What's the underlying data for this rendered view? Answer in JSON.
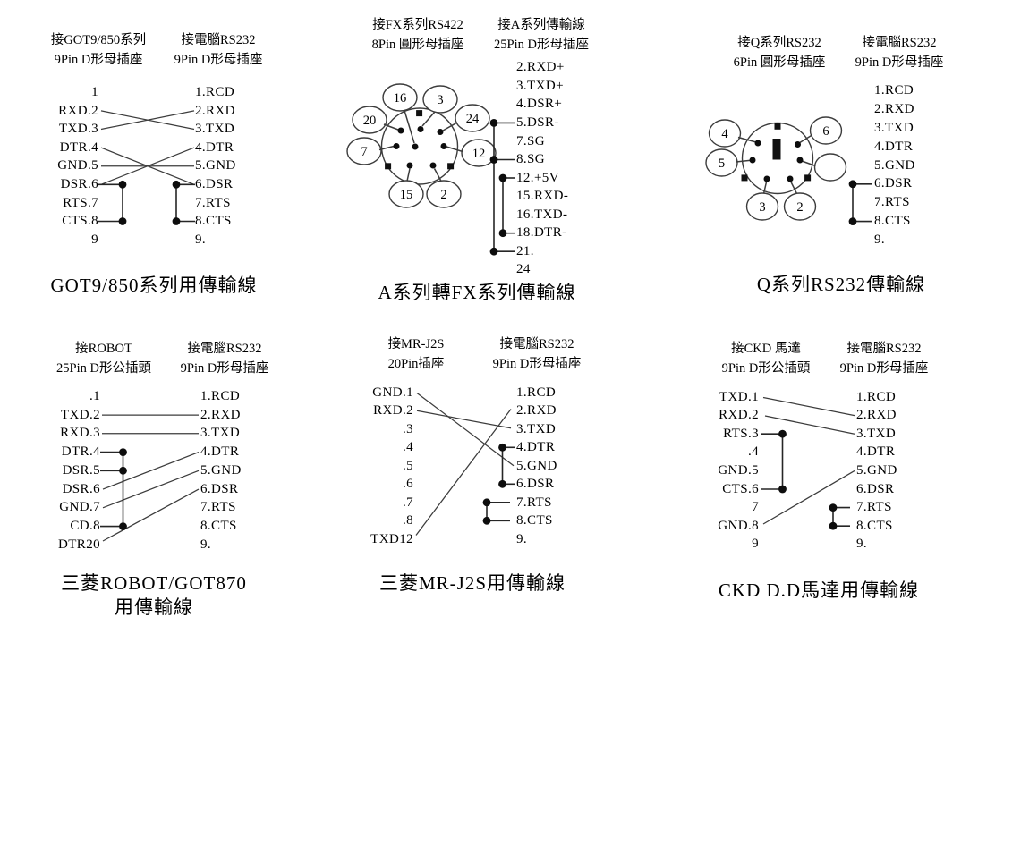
{
  "colors": {
    "ink": "#1a1a1a",
    "line": "#3c3c3c",
    "background": "#ffffff"
  },
  "diagrams": [
    {
      "id": "got9-850-series",
      "left_header": [
        "接GOT9/850系列",
        "9Pin D形母插座"
      ],
      "right_header": [
        "接電腦RS232",
        "9Pin D形母插座"
      ],
      "left_pins": [
        "1",
        "RXD.2",
        "TXD.3",
        "DTR.4",
        "GND.5",
        "DSR.6",
        "RTS.7",
        "CTS.8",
        "9"
      ],
      "right_pins": [
        "1.RCD",
        "2.RXD",
        "3.TXD",
        "4.DTR",
        "5.GND",
        "6.DSR",
        "7.RTS",
        "8.CTS",
        "9."
      ],
      "caption": [
        "GOT9/850系列用傳輸線"
      ]
    },
    {
      "id": "a-series-to-fx-series",
      "left_header": [
        "接FX系列RS422",
        "8Pin 圓形母插座"
      ],
      "right_header": [
        "接A系列傳輸線",
        "25Pin D形母插座"
      ],
      "bubble_labels": [
        "16",
        "3",
        "20",
        "24",
        "7",
        "12",
        "15",
        "2"
      ],
      "right_pins": [
        "2.RXD+",
        "3.TXD+",
        "4.DSR+",
        "5.DSR-",
        "7.SG",
        "8.SG",
        "12.+5V",
        "15.RXD-",
        "16.TXD-",
        "18.DTR-",
        "21.",
        "24"
      ],
      "caption": [
        "A系列轉FX系列傳輸線"
      ]
    },
    {
      "id": "q-series-rs232",
      "left_header": [
        "接Q系列RS232",
        "6Pin 圓形母插座"
      ],
      "right_header": [
        "接電腦RS232",
        "9Pin D形母插座"
      ],
      "bubble_labels": [
        "4",
        "6",
        "5",
        "",
        "3",
        "2"
      ],
      "right_pins": [
        "1.RCD",
        "2.RXD",
        "3.TXD",
        "4.DTR",
        "5.GND",
        "6.DSR",
        "7.RTS",
        "8.CTS",
        "9."
      ],
      "caption": [
        "Q系列RS232傳輸線"
      ]
    },
    {
      "id": "mitsubishi-robot-got870",
      "left_header": [
        "接ROBOT",
        "25Pin D形公插頭"
      ],
      "right_header": [
        "接電腦RS232",
        "9Pin D形母插座"
      ],
      "left_pins": [
        ".1",
        "TXD.2",
        "RXD.3",
        "DTR.4",
        "DSR.5",
        "DSR.6",
        "GND.7",
        "CD.8",
        "DTR20"
      ],
      "right_pins": [
        "1.RCD",
        "2.RXD",
        "3.TXD",
        "4.DTR",
        "5.GND",
        "6.DSR",
        "7.RTS",
        "8.CTS",
        "9."
      ],
      "caption": [
        "三菱ROBOT/GOT870",
        "用傳輸線"
      ]
    },
    {
      "id": "mitsubishi-mr-j2s",
      "left_header": [
        "接MR-J2S",
        "20Pin插座"
      ],
      "right_header": [
        "接電腦RS232",
        "9Pin D形母插座"
      ],
      "left_pins": [
        "GND.1",
        "RXD.2",
        ".3",
        ".4",
        ".5",
        ".6",
        ".7",
        ".8",
        "TXD12"
      ],
      "right_pins": [
        "1.RCD",
        "2.RXD",
        "3.TXD",
        "4.DTR",
        "5.GND",
        "6.DSR",
        "7.RTS",
        "8.CTS",
        "9."
      ],
      "caption": [
        "三菱MR-J2S用傳輸線"
      ]
    },
    {
      "id": "ckd-dd-motor",
      "left_header": [
        "接CKD 馬達",
        "9Pin D形公插頭"
      ],
      "right_header": [
        "接電腦RS232",
        "9Pin D形母插座"
      ],
      "left_pins": [
        "TXD.1",
        "RXD.2",
        "RTS.3",
        ".4",
        "GND.5",
        "CTS.6",
        "7",
        "GND.8",
        "9"
      ],
      "right_pins": [
        "1.RCD",
        "2.RXD",
        "3.TXD",
        "4.DTR",
        "5.GND",
        "6.DSR",
        "7.RTS",
        "8.CTS",
        "9."
      ],
      "caption": [
        "CKD D.D馬達用傳輸線"
      ]
    }
  ]
}
